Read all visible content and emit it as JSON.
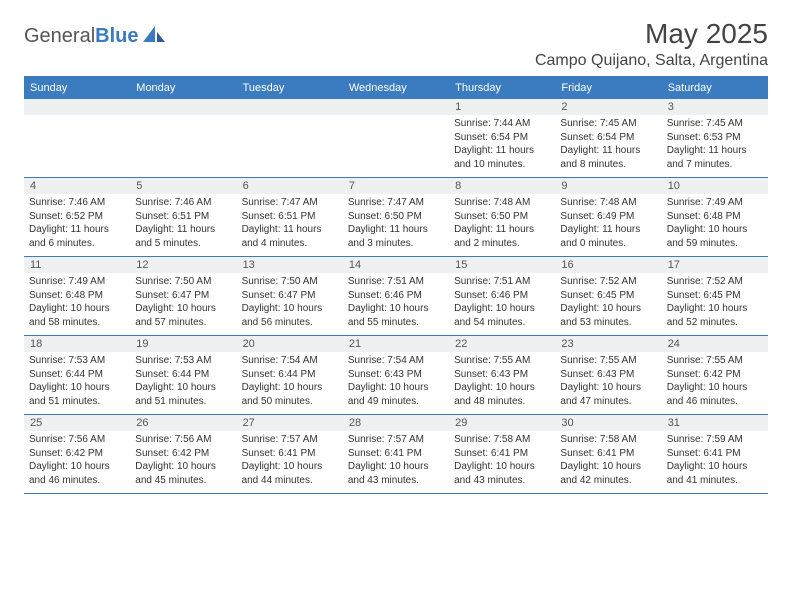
{
  "logo": {
    "text_gray": "General",
    "text_blue": "Blue"
  },
  "title": "May 2025",
  "location": "Campo Quijano, Salta, Argentina",
  "colors": {
    "accent": "#3b7bbf",
    "header_text": "#ffffff",
    "daynum_bg": "#eef0f2",
    "text": "#333333",
    "bg": "#ffffff"
  },
  "day_headers": [
    "Sunday",
    "Monday",
    "Tuesday",
    "Wednesday",
    "Thursday",
    "Friday",
    "Saturday"
  ],
  "weeks": [
    [
      {
        "n": "",
        "sr": "",
        "ss": "",
        "dl": ""
      },
      {
        "n": "",
        "sr": "",
        "ss": "",
        "dl": ""
      },
      {
        "n": "",
        "sr": "",
        "ss": "",
        "dl": ""
      },
      {
        "n": "",
        "sr": "",
        "ss": "",
        "dl": ""
      },
      {
        "n": "1",
        "sr": "Sunrise: 7:44 AM",
        "ss": "Sunset: 6:54 PM",
        "dl": "Daylight: 11 hours and 10 minutes."
      },
      {
        "n": "2",
        "sr": "Sunrise: 7:45 AM",
        "ss": "Sunset: 6:54 PM",
        "dl": "Daylight: 11 hours and 8 minutes."
      },
      {
        "n": "3",
        "sr": "Sunrise: 7:45 AM",
        "ss": "Sunset: 6:53 PM",
        "dl": "Daylight: 11 hours and 7 minutes."
      }
    ],
    [
      {
        "n": "4",
        "sr": "Sunrise: 7:46 AM",
        "ss": "Sunset: 6:52 PM",
        "dl": "Daylight: 11 hours and 6 minutes."
      },
      {
        "n": "5",
        "sr": "Sunrise: 7:46 AM",
        "ss": "Sunset: 6:51 PM",
        "dl": "Daylight: 11 hours and 5 minutes."
      },
      {
        "n": "6",
        "sr": "Sunrise: 7:47 AM",
        "ss": "Sunset: 6:51 PM",
        "dl": "Daylight: 11 hours and 4 minutes."
      },
      {
        "n": "7",
        "sr": "Sunrise: 7:47 AM",
        "ss": "Sunset: 6:50 PM",
        "dl": "Daylight: 11 hours and 3 minutes."
      },
      {
        "n": "8",
        "sr": "Sunrise: 7:48 AM",
        "ss": "Sunset: 6:50 PM",
        "dl": "Daylight: 11 hours and 2 minutes."
      },
      {
        "n": "9",
        "sr": "Sunrise: 7:48 AM",
        "ss": "Sunset: 6:49 PM",
        "dl": "Daylight: 11 hours and 0 minutes."
      },
      {
        "n": "10",
        "sr": "Sunrise: 7:49 AM",
        "ss": "Sunset: 6:48 PM",
        "dl": "Daylight: 10 hours and 59 minutes."
      }
    ],
    [
      {
        "n": "11",
        "sr": "Sunrise: 7:49 AM",
        "ss": "Sunset: 6:48 PM",
        "dl": "Daylight: 10 hours and 58 minutes."
      },
      {
        "n": "12",
        "sr": "Sunrise: 7:50 AM",
        "ss": "Sunset: 6:47 PM",
        "dl": "Daylight: 10 hours and 57 minutes."
      },
      {
        "n": "13",
        "sr": "Sunrise: 7:50 AM",
        "ss": "Sunset: 6:47 PM",
        "dl": "Daylight: 10 hours and 56 minutes."
      },
      {
        "n": "14",
        "sr": "Sunrise: 7:51 AM",
        "ss": "Sunset: 6:46 PM",
        "dl": "Daylight: 10 hours and 55 minutes."
      },
      {
        "n": "15",
        "sr": "Sunrise: 7:51 AM",
        "ss": "Sunset: 6:46 PM",
        "dl": "Daylight: 10 hours and 54 minutes."
      },
      {
        "n": "16",
        "sr": "Sunrise: 7:52 AM",
        "ss": "Sunset: 6:45 PM",
        "dl": "Daylight: 10 hours and 53 minutes."
      },
      {
        "n": "17",
        "sr": "Sunrise: 7:52 AM",
        "ss": "Sunset: 6:45 PM",
        "dl": "Daylight: 10 hours and 52 minutes."
      }
    ],
    [
      {
        "n": "18",
        "sr": "Sunrise: 7:53 AM",
        "ss": "Sunset: 6:44 PM",
        "dl": "Daylight: 10 hours and 51 minutes."
      },
      {
        "n": "19",
        "sr": "Sunrise: 7:53 AM",
        "ss": "Sunset: 6:44 PM",
        "dl": "Daylight: 10 hours and 51 minutes."
      },
      {
        "n": "20",
        "sr": "Sunrise: 7:54 AM",
        "ss": "Sunset: 6:44 PM",
        "dl": "Daylight: 10 hours and 50 minutes."
      },
      {
        "n": "21",
        "sr": "Sunrise: 7:54 AM",
        "ss": "Sunset: 6:43 PM",
        "dl": "Daylight: 10 hours and 49 minutes."
      },
      {
        "n": "22",
        "sr": "Sunrise: 7:55 AM",
        "ss": "Sunset: 6:43 PM",
        "dl": "Daylight: 10 hours and 48 minutes."
      },
      {
        "n": "23",
        "sr": "Sunrise: 7:55 AM",
        "ss": "Sunset: 6:43 PM",
        "dl": "Daylight: 10 hours and 47 minutes."
      },
      {
        "n": "24",
        "sr": "Sunrise: 7:55 AM",
        "ss": "Sunset: 6:42 PM",
        "dl": "Daylight: 10 hours and 46 minutes."
      }
    ],
    [
      {
        "n": "25",
        "sr": "Sunrise: 7:56 AM",
        "ss": "Sunset: 6:42 PM",
        "dl": "Daylight: 10 hours and 46 minutes."
      },
      {
        "n": "26",
        "sr": "Sunrise: 7:56 AM",
        "ss": "Sunset: 6:42 PM",
        "dl": "Daylight: 10 hours and 45 minutes."
      },
      {
        "n": "27",
        "sr": "Sunrise: 7:57 AM",
        "ss": "Sunset: 6:41 PM",
        "dl": "Daylight: 10 hours and 44 minutes."
      },
      {
        "n": "28",
        "sr": "Sunrise: 7:57 AM",
        "ss": "Sunset: 6:41 PM",
        "dl": "Daylight: 10 hours and 43 minutes."
      },
      {
        "n": "29",
        "sr": "Sunrise: 7:58 AM",
        "ss": "Sunset: 6:41 PM",
        "dl": "Daylight: 10 hours and 43 minutes."
      },
      {
        "n": "30",
        "sr": "Sunrise: 7:58 AM",
        "ss": "Sunset: 6:41 PM",
        "dl": "Daylight: 10 hours and 42 minutes."
      },
      {
        "n": "31",
        "sr": "Sunrise: 7:59 AM",
        "ss": "Sunset: 6:41 PM",
        "dl": "Daylight: 10 hours and 41 minutes."
      }
    ]
  ]
}
